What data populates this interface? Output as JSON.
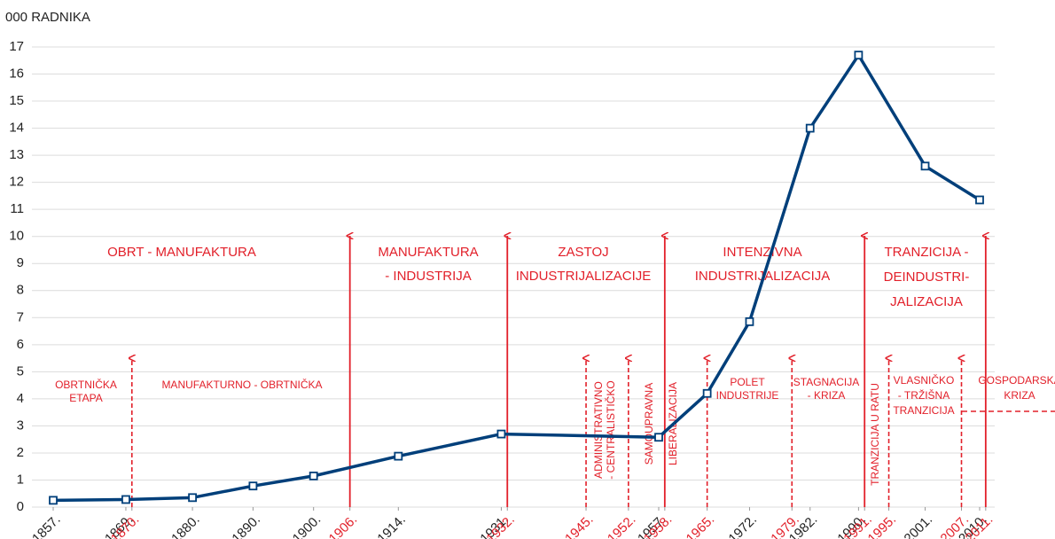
{
  "chart_data": {
    "type": "line",
    "y_label": "000 RADNIKA",
    "x": [
      1857,
      1869,
      1880,
      1890,
      1900,
      1914,
      1931,
      1957,
      1965,
      1972,
      1982,
      1990,
      2001,
      2010
    ],
    "series": [
      {
        "color": "#003f7a",
        "values": [
          0.25,
          0.28,
          0.35,
          0.78,
          1.15,
          1.88,
          2.7,
          2.58,
          4.2,
          6.85,
          14.0,
          16.7,
          12.6,
          11.35
        ]
      }
    ],
    "xlim": [
      1857,
      2010
    ],
    "xticks": [
      {
        "value": 1857,
        "label": "1857."
      },
      {
        "value": 1869,
        "label": "1869."
      },
      {
        "value": 1870,
        "label": "1870."
      },
      {
        "value": 1880,
        "label": "1880."
      },
      {
        "value": 1890,
        "label": "1890."
      },
      {
        "value": 1900,
        "label": "1900."
      },
      {
        "value": 1906,
        "label": "1906."
      },
      {
        "value": 1914,
        "label": "1914."
      },
      {
        "value": 1931,
        "label": "1931."
      },
      {
        "value": 1932,
        "label": "1932."
      },
      {
        "value": 1945,
        "label": "1945."
      },
      {
        "value": 1952,
        "label": "1952."
      },
      {
        "value": 1957,
        "label": "1957."
      },
      {
        "value": 1958,
        "label": "1958."
      },
      {
        "value": 1965,
        "label": "1965."
      },
      {
        "value": 1972,
        "label": "1972."
      },
      {
        "value": 1979,
        "label": "1979."
      },
      {
        "value": 1982,
        "label": "1982."
      },
      {
        "value": 1990,
        "label": "1990."
      },
      {
        "value": 1991,
        "label": "1991."
      },
      {
        "value": 1995,
        "label": "1995."
      },
      {
        "value": 2001,
        "label": "2001."
      },
      {
        "value": 2007,
        "label": "2007."
      },
      {
        "value": 2010,
        "label": "2010."
      },
      {
        "value": 2011,
        "label": "2011."
      }
    ],
    "ylim": [
      0,
      17
    ],
    "yticks": [
      0,
      1,
      2,
      3,
      4,
      5,
      6,
      7,
      8,
      9,
      10,
      11,
      12,
      13,
      14,
      15,
      16,
      17
    ],
    "grid": true,
    "boundaries": {
      "major": [
        1906,
        1932,
        1958,
        1991,
        2011
      ],
      "minor": [
        1870,
        1945,
        1952,
        1965,
        1979,
        1995,
        2007
      ]
    },
    "annotation_color": "#e2202a",
    "annotations": [
      {
        "lines": [
          "OBRT - MANUFAKTURA"
        ]
      },
      {
        "lines": [
          "MANUFAKTURA",
          "- INDUSTRIJA"
        ]
      },
      {
        "lines": [
          "ZASTOJ",
          "INDUSTRIJALIZACIJE"
        ]
      },
      {
        "lines": [
          "INTENZIVNA",
          "INDUSTRIJALIZACIJA"
        ]
      },
      {
        "lines": [
          "TRANZICIJA -",
          "DEINDUSTRI-",
          "JALIZACIJA"
        ]
      },
      {
        "lines": [
          "OBRTNIČKA",
          "ETAPA"
        ]
      },
      {
        "lines": [
          "MANUFAKTURNO - OBRTNIČKA"
        ]
      },
      {
        "lines": [
          "ADMINISTRATIVNO",
          "- CENTRALISTIČKO"
        ]
      },
      {
        "lines": [
          "SAMOUPRAVNA"
        ]
      },
      {
        "lines": [
          "LIBERALIZACIJA"
        ]
      },
      {
        "lines": [
          "POLET",
          "INDUSTRIJE"
        ]
      },
      {
        "lines": [
          "STAGNACIJA",
          "- KRIZA"
        ]
      },
      {
        "lines": [
          "TRANZICIJA U RATU"
        ]
      },
      {
        "lines": [
          "VLASNIČKO",
          "- TRŽIŠNA",
          "TRANZICIJA"
        ]
      },
      {
        "lines": [
          "GOSPODARSKA",
          "KRIZA"
        ]
      }
    ]
  }
}
